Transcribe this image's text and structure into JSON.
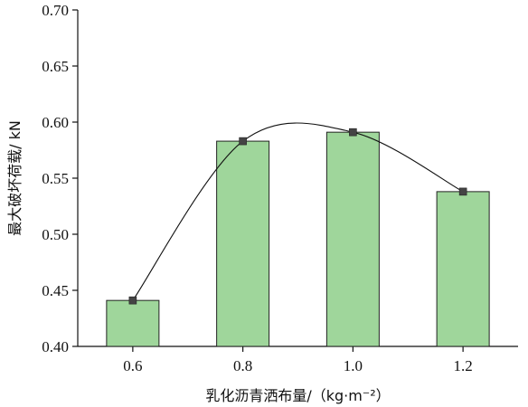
{
  "chart_data": {
    "type": "bar",
    "categories": [
      "0.6",
      "0.8",
      "1.0",
      "1.2"
    ],
    "values": [
      0.441,
      0.583,
      0.591,
      0.538
    ],
    "title": "",
    "xlabel": "乳化沥青洒布量/（kg·m⁻²）",
    "ylabel": "最大破坏荷载/ kN",
    "ylim": [
      0.4,
      0.7
    ],
    "yticks": [
      "0.40",
      "0.45",
      "0.50",
      "0.55",
      "0.60",
      "0.65",
      "0.70"
    ],
    "legend": "none",
    "grid": false,
    "trend_curve": {
      "type": "line",
      "smooth": true,
      "markers": "square",
      "points": [
        {
          "x": 0.6,
          "y": 0.441
        },
        {
          "x": 0.8,
          "y": 0.583
        },
        {
          "x": 1.0,
          "y": 0.591
        },
        {
          "x": 1.2,
          "y": 0.538
        }
      ]
    },
    "colors": {
      "bar_fill": "#9fd69b",
      "bar_stroke": "#222222",
      "curve": "#111111",
      "marker": "#444444"
    }
  }
}
